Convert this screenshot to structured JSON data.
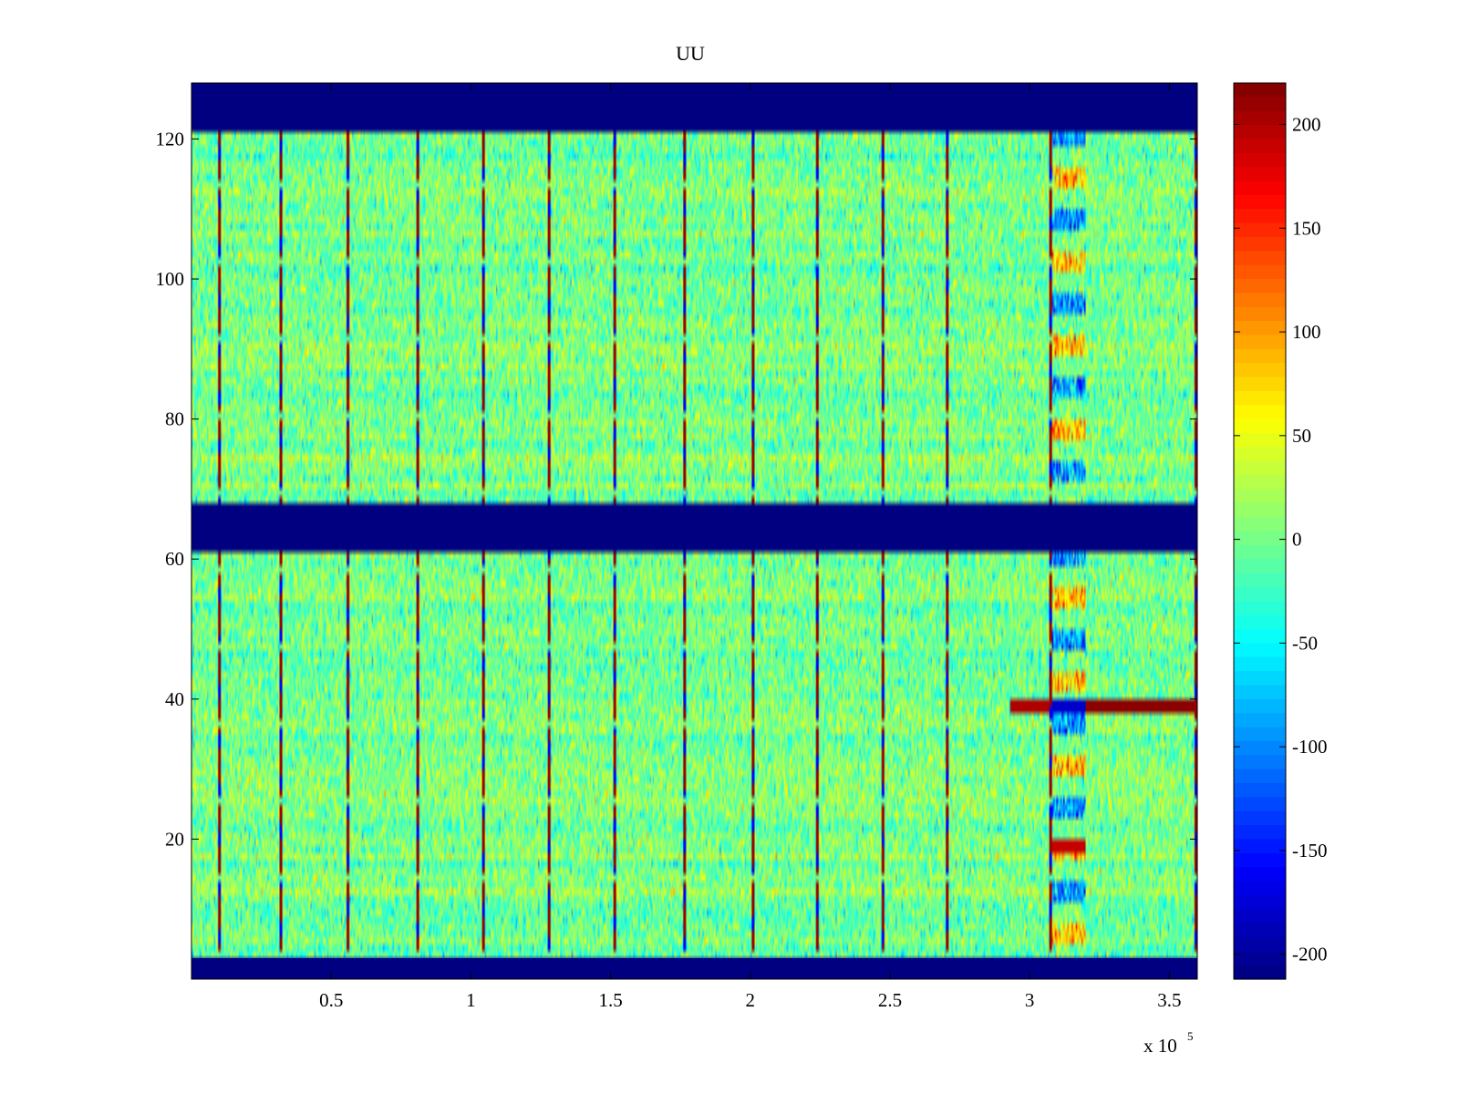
{
  "chart_data": {
    "type": "heatmap",
    "title": "UU",
    "xlabel": "",
    "ylabel": "",
    "xlim": [
      0,
      360000
    ],
    "ylim": [
      0,
      128
    ],
    "x_exponent_label": "x 10",
    "x_exponent_power": "5",
    "x_ticks": [
      {
        "value": 50000,
        "label": "0.5"
      },
      {
        "value": 100000,
        "label": "1"
      },
      {
        "value": 150000,
        "label": "1.5"
      },
      {
        "value": 200000,
        "label": "2"
      },
      {
        "value": 250000,
        "label": "2.5"
      },
      {
        "value": 300000,
        "label": "3"
      },
      {
        "value": 350000,
        "label": "3.5"
      }
    ],
    "y_ticks": [
      {
        "value": 20,
        "label": "20"
      },
      {
        "value": 40,
        "label": "40"
      },
      {
        "value": 60,
        "label": "60"
      },
      {
        "value": 80,
        "label": "80"
      },
      {
        "value": 100,
        "label": "100"
      },
      {
        "value": 120,
        "label": "120"
      }
    ],
    "color_range": [
      -212,
      220
    ],
    "colormap": "jet",
    "colorbar_ticks": [
      {
        "value": 200,
        "label": "200"
      },
      {
        "value": 150,
        "label": "150"
      },
      {
        "value": 100,
        "label": "100"
      },
      {
        "value": 50,
        "label": "50"
      },
      {
        "value": 0,
        "label": "0"
      },
      {
        "value": -50,
        "label": "-50"
      },
      {
        "value": -100,
        "label": "-100"
      },
      {
        "value": -150,
        "label": "-150"
      },
      {
        "value": -200,
        "label": "-200"
      }
    ],
    "background_value_mean": 0,
    "background_value_std": 28,
    "masked_row_bands": [
      {
        "y_from": 121.5,
        "y_to": 128,
        "value": -212
      },
      {
        "y_from": 61.5,
        "y_to": 67.5,
        "value": -212
      },
      {
        "y_from": 0,
        "y_to": 3,
        "value": -212
      }
    ],
    "vertical_streak_x": [
      10000,
      32000,
      56000,
      81000,
      104500,
      128000,
      151500,
      176500,
      201000,
      224000,
      247500,
      270500,
      307500,
      359500
    ],
    "streak_value_range": [
      -180,
      220
    ],
    "anomaly_column": {
      "x_from": 308000,
      "x_to": 320000
    },
    "strong_row_events": [
      {
        "y": 39,
        "x_from": 293000,
        "x_to": 307000,
        "value": 200
      },
      {
        "y": 39,
        "x_from": 320000,
        "x_to": 359000,
        "value": 215
      },
      {
        "y": 39,
        "x_from": 308000,
        "x_to": 320000,
        "value": -180
      },
      {
        "y": 19,
        "x_from": 308000,
        "x_to": 320000,
        "value": 190
      }
    ]
  }
}
